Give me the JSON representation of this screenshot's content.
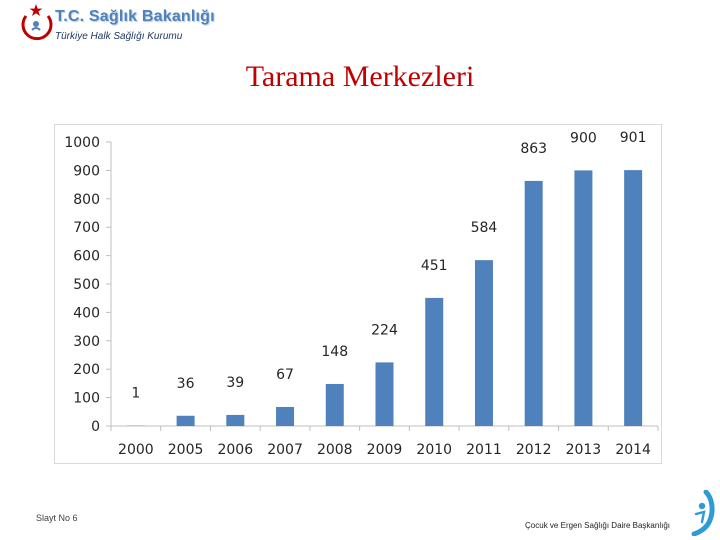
{
  "header": {
    "org_name": "T.C. Sağlık Bakanlığı",
    "org_sub": "Türkiye Halk Sağlığı Kurumu",
    "accent_color": "#4f81bd",
    "logo_icon": "crescent-star-logo-icon"
  },
  "slide": {
    "title": "Tarama Merkezleri",
    "title_color": "#c00000"
  },
  "chart_data": {
    "type": "bar",
    "categories": [
      "2000",
      "2005",
      "2006",
      "2007",
      "2008",
      "2009",
      "2010",
      "2011",
      "2012",
      "2013",
      "2014"
    ],
    "values": [
      1,
      36,
      39,
      67,
      148,
      224,
      451,
      584,
      863,
      900,
      901
    ],
    "data_labels": [
      "1",
      "36",
      "39",
      "67",
      "148",
      "224",
      "451",
      "584",
      "863",
      "900",
      "901"
    ],
    "ylim": [
      0,
      1000
    ],
    "yticks": [
      0,
      100,
      200,
      300,
      400,
      500,
      600,
      700,
      800,
      900,
      1000
    ],
    "ytick_labels": [
      "0",
      "100",
      "200",
      "300",
      "400",
      "500",
      "600",
      "700",
      "800",
      "900",
      "1000"
    ],
    "bar_color": "#4f81bd",
    "grid": false,
    "legend": "none"
  },
  "footer": {
    "slide_no": "Slayt No 6",
    "department": "Çocuk ve Ergen Sağlığı Daire Başkanlığı",
    "corner_icon": "child-figure-icon"
  }
}
